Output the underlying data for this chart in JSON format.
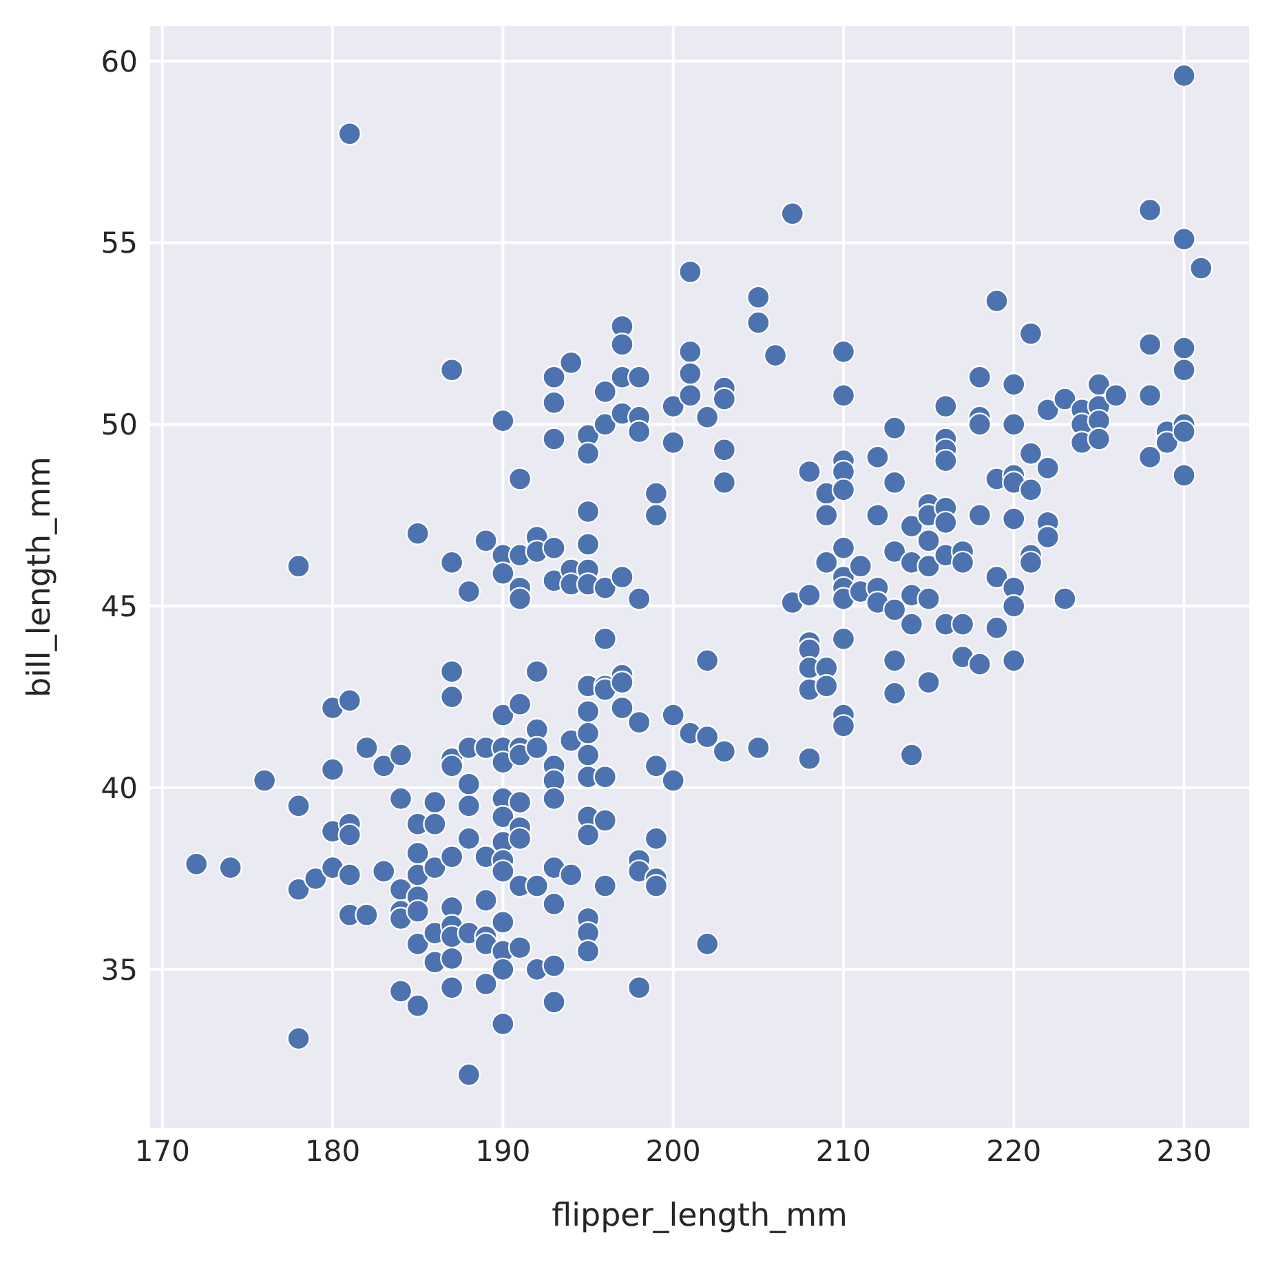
{
  "chart_data": {
    "type": "scatter",
    "xlabel": "flipper_length_mm",
    "ylabel": "bill_length_mm",
    "xlim": [
      169.2,
      233.9
    ],
    "ylim": [
      30.6,
      61.0
    ],
    "xticks": [
      170,
      180,
      190,
      200,
      210,
      220,
      230
    ],
    "yticks": [
      35,
      40,
      45,
      50,
      55,
      60
    ],
    "grid": true,
    "marker": "circle",
    "series": [
      {
        "color": "#4c72b0",
        "x": [
          172,
          174,
          176,
          178,
          178,
          178,
          178,
          179,
          180,
          180,
          180,
          180,
          181,
          181,
          181,
          181,
          181,
          181,
          182,
          182,
          183,
          183,
          184,
          184,
          184,
          184,
          184,
          184,
          185,
          185,
          185,
          185,
          185,
          185,
          185,
          185,
          186,
          186,
          186,
          186,
          186,
          187,
          187,
          187,
          187,
          187,
          187,
          187,
          187,
          187,
          187,
          187,
          187,
          188,
          188,
          188,
          188,
          188,
          188,
          188,
          189,
          189,
          189,
          189,
          189,
          189,
          189,
          190,
          190,
          190,
          190,
          190,
          190,
          190,
          190,
          190,
          190,
          190,
          190,
          190,
          190,
          190,
          191,
          191,
          191,
          191,
          191,
          191,
          191,
          191,
          191,
          191,
          191,
          191,
          192,
          192,
          192,
          192,
          192,
          192,
          192,
          193,
          193,
          193,
          193,
          193,
          193,
          193,
          193,
          193,
          193,
          193,
          193,
          194,
          194,
          194,
          194,
          194,
          195,
          195,
          195,
          195,
          195,
          195,
          195,
          195,
          195,
          195,
          195,
          195,
          195,
          195,
          195,
          195,
          196,
          196,
          196,
          196,
          196,
          196,
          196,
          196,
          196,
          197,
          197,
          197,
          197,
          197,
          197,
          197,
          197,
          198,
          198,
          198,
          198,
          198,
          198,
          198,
          198,
          199,
          199,
          199,
          199,
          199,
          199,
          200,
          200,
          200,
          200,
          201,
          201,
          201,
          201,
          201,
          202,
          202,
          202,
          202,
          203,
          203,
          203,
          203,
          203,
          205,
          205,
          205,
          206,
          207,
          207,
          208,
          208,
          208,
          208,
          208,
          208,
          208,
          209,
          209,
          209,
          209,
          209,
          210,
          210,
          210,
          210,
          210,
          210,
          210,
          210,
          210,
          210,
          210,
          210,
          211,
          211,
          212,
          212,
          212,
          212,
          213,
          213,
          213,
          213,
          213,
          213,
          214,
          214,
          214,
          214,
          214,
          215,
          215,
          215,
          215,
          215,
          215,
          216,
          216,
          216,
          216,
          216,
          216,
          216,
          216,
          217,
          217,
          217,
          217,
          218,
          218,
          218,
          218,
          218,
          219,
          219,
          219,
          219,
          220,
          220,
          220,
          220,
          220,
          220,
          220,
          220,
          221,
          221,
          221,
          221,
          221,
          222,
          222,
          222,
          222,
          223,
          223,
          224,
          224,
          224,
          225,
          225,
          225,
          225,
          226,
          228,
          228,
          228,
          228,
          229,
          229,
          230,
          230,
          230,
          230,
          230,
          230,
          230,
          231
        ],
        "values": [
          37.9,
          37.8,
          40.2,
          46.1,
          39.5,
          37.2,
          33.1,
          37.5,
          42.2,
          40.5,
          38.8,
          37.8,
          58.0,
          42.4,
          39.0,
          38.7,
          37.6,
          36.5,
          41.1,
          36.5,
          40.6,
          37.7,
          40.9,
          39.7,
          37.2,
          36.6,
          36.4,
          34.4,
          47.0,
          39.0,
          38.2,
          37.6,
          37.0,
          36.6,
          35.7,
          34.0,
          39.6,
          39.0,
          37.8,
          36.0,
          35.2,
          51.5,
          46.2,
          43.2,
          42.5,
          40.8,
          40.6,
          38.1,
          36.7,
          36.2,
          35.9,
          35.3,
          34.5,
          45.4,
          41.1,
          40.1,
          39.5,
          38.6,
          36.0,
          32.1,
          46.8,
          41.1,
          38.1,
          36.9,
          35.9,
          35.7,
          34.6,
          50.1,
          46.4,
          45.9,
          42.0,
          41.1,
          40.7,
          39.7,
          39.2,
          38.5,
          38.0,
          37.7,
          36.3,
          35.5,
          35.0,
          33.5,
          48.5,
          46.4,
          45.5,
          45.2,
          42.3,
          41.1,
          40.9,
          39.6,
          38.9,
          38.6,
          37.3,
          35.6,
          46.9,
          46.5,
          43.2,
          41.6,
          41.1,
          37.3,
          35.0,
          51.3,
          50.6,
          49.6,
          46.6,
          45.7,
          40.6,
          40.2,
          39.7,
          37.8,
          36.8,
          35.1,
          34.1,
          51.7,
          46.0,
          45.6,
          41.3,
          37.6,
          49.7,
          49.2,
          47.6,
          46.7,
          46.0,
          45.6,
          42.8,
          42.1,
          41.5,
          40.9,
          40.3,
          39.2,
          38.7,
          36.4,
          36.0,
          35.5,
          50.9,
          50.0,
          45.5,
          44.1,
          42.8,
          42.7,
          40.3,
          39.1,
          37.3,
          52.7,
          52.2,
          51.3,
          50.3,
          45.8,
          43.1,
          42.9,
          42.2,
          51.3,
          50.2,
          49.8,
          45.2,
          41.8,
          38.0,
          37.7,
          34.5,
          48.1,
          47.5,
          40.6,
          38.6,
          37.5,
          37.3,
          50.5,
          49.5,
          42.0,
          40.2,
          54.2,
          52.0,
          51.4,
          50.8,
          41.5,
          50.2,
          43.5,
          41.4,
          35.7,
          51.0,
          50.7,
          49.3,
          48.4,
          41.0,
          53.5,
          52.8,
          41.1,
          51.9,
          55.8,
          45.1,
          48.7,
          45.3,
          44.0,
          43.8,
          43.3,
          42.7,
          40.8,
          48.1,
          47.5,
          46.2,
          43.3,
          42.8,
          52.0,
          50.8,
          49.0,
          48.7,
          48.2,
          46.6,
          45.8,
          45.5,
          45.2,
          44.1,
          42.0,
          41.7,
          46.1,
          45.4,
          49.1,
          47.5,
          45.5,
          45.1,
          49.9,
          48.4,
          46.5,
          44.9,
          43.5,
          42.6,
          47.2,
          46.2,
          45.3,
          44.5,
          40.9,
          47.8,
          47.5,
          46.8,
          46.1,
          45.2,
          42.9,
          50.5,
          49.6,
          49.3,
          49.0,
          47.7,
          47.3,
          46.4,
          44.5,
          46.5,
          46.2,
          44.5,
          43.6,
          51.3,
          50.2,
          50.0,
          47.5,
          43.4,
          53.4,
          48.5,
          45.8,
          44.4,
          51.1,
          50.0,
          48.6,
          48.4,
          47.4,
          45.5,
          45.0,
          43.5,
          52.5,
          49.2,
          48.2,
          46.4,
          46.2,
          48.8,
          47.3,
          46.9,
          50.4,
          50.7,
          45.2,
          50.4,
          50.0,
          49.5,
          51.1,
          50.5,
          50.1,
          49.6,
          50.8,
          55.9,
          52.2,
          50.8,
          49.1,
          49.8,
          49.5,
          59.6,
          55.1,
          52.1,
          51.5,
          50.0,
          49.8,
          48.6,
          54.3
        ]
      }
    ]
  }
}
